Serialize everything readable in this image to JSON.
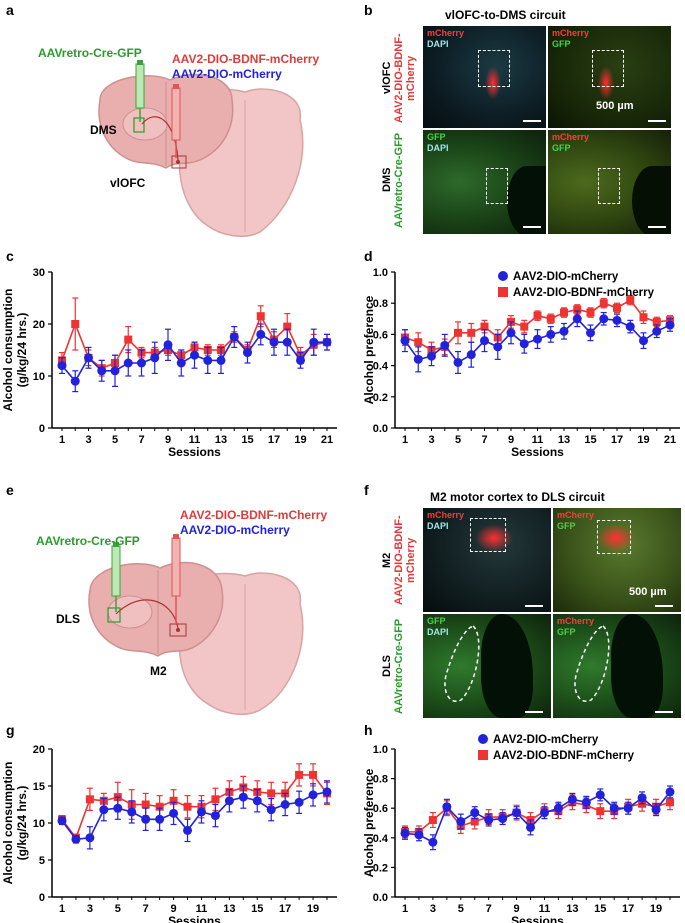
{
  "panels": {
    "a": "a",
    "b": "b",
    "c": "c",
    "d": "d",
    "e": "e",
    "f": "f",
    "g": "g",
    "h": "h"
  },
  "colors": {
    "red": "#ee3333",
    "blue": "#2222dd",
    "green": "#2a9c2a"
  },
  "schematic_top": {
    "retro": "AAVretro-Cre-GFP",
    "bdnf": "AAV2-DIO-BDNF-mCherry",
    "mcherry": "AAV2-DIO-mCherry",
    "target": "DMS",
    "source": "vlOFC"
  },
  "schematic_bottom": {
    "retro": "AAVretro-Cre-GFP",
    "bdnf": "AAV2-DIO-BDNF-mCherry",
    "mcherry": "AAV2-DIO-mCherry",
    "target": "DLS",
    "source": "M2"
  },
  "micro_top": {
    "title": "vlOFC-to-DMS circuit",
    "row1_region": "vlOFC",
    "row1_virus": "AAV2-DIO-BDNF-mCherry",
    "row2_region": "DMS",
    "row2_virus": "AAVretro-Cre-GFP",
    "ch_mcherry": "mCherry",
    "ch_dapi": "DAPI",
    "ch_gfp": "GFP",
    "scale": "500 µm"
  },
  "micro_bottom": {
    "title": "M2 motor cortex to DLS circuit",
    "row1_region": "M2",
    "row1_virus": "AAV2-DIO-BDNF-mCherry",
    "row2_region": "DLS",
    "row2_virus": "AAVretro-Cre-GFP",
    "ch_mcherry": "mCherry",
    "ch_dapi": "DAPI",
    "ch_gfp": "GFP",
    "scale": "500 µm"
  },
  "chart_data": [
    {
      "id": "c",
      "type": "line",
      "ylabel": "Alcohol consumption\n(g/kg/24 hrs.)",
      "xlabel": "Sessions",
      "ylim": [
        0,
        30
      ],
      "yticks": [
        0,
        10,
        20,
        30
      ],
      "xticks": [
        1,
        3,
        5,
        7,
        9,
        11,
        13,
        15,
        17,
        19,
        21
      ],
      "x": [
        1,
        2,
        3,
        4,
        5,
        6,
        7,
        8,
        9,
        10,
        11,
        12,
        13,
        14,
        15,
        16,
        17,
        18,
        19,
        20,
        21
      ],
      "legend": "",
      "series": [
        {
          "name": "AAV2-DIO-BDNF-mCherry",
          "color": "#ee3333",
          "marker": "square",
          "values": [
            13,
            20,
            13.5,
            11.5,
            12.5,
            17,
            14.5,
            14.5,
            15,
            14,
            15.5,
            15,
            15,
            17.5,
            15,
            21.5,
            17,
            19.5,
            14,
            16,
            16.5
          ],
          "err": [
            1.5,
            5,
            1.5,
            1.5,
            1.5,
            2.5,
            1,
            1,
            1,
            1,
            1,
            1,
            1,
            1,
            1,
            2,
            1.5,
            2.5,
            1.5,
            2,
            1.5
          ]
        },
        {
          "name": "AAV2-DIO-mCherry",
          "color": "#2222dd",
          "marker": "circle",
          "values": [
            12,
            9,
            13.5,
            11,
            11,
            12.5,
            12.5,
            13.5,
            16,
            12.5,
            14,
            13,
            13,
            17.5,
            14.5,
            18,
            16.5,
            16.5,
            13,
            16.5,
            16.5
          ],
          "err": [
            1.5,
            2,
            2,
            2,
            3,
            2.5,
            2.5,
            3,
            3,
            2.5,
            2.5,
            2.5,
            2.5,
            2,
            2,
            2,
            2.5,
            2.5,
            1.5,
            2.5,
            1.5
          ]
        }
      ]
    },
    {
      "id": "d",
      "type": "line",
      "ylabel": "Alcohol preference",
      "xlabel": "Sessions",
      "ylim": [
        0,
        1.0
      ],
      "yticks": [
        0,
        0.2,
        0.4,
        0.6,
        0.8,
        1.0
      ],
      "ytick_labels": [
        "0.0",
        "0.2",
        "0.4",
        "0.6",
        "0.8",
        "1.0"
      ],
      "xticks": [
        1,
        3,
        5,
        7,
        9,
        11,
        13,
        15,
        17,
        19,
        21
      ],
      "x": [
        1,
        2,
        3,
        4,
        5,
        6,
        7,
        8,
        9,
        10,
        11,
        12,
        13,
        14,
        15,
        16,
        17,
        18,
        19,
        20,
        21
      ],
      "legend": "top-right",
      "legend_order": [
        "AAV2-DIO-mCherry",
        "AAV2-DIO-BDNF-mCherry"
      ],
      "series": [
        {
          "name": "AAV2-DIO-BDNF-mCherry",
          "color": "#ee3333",
          "marker": "square",
          "values": [
            0.58,
            0.55,
            0.5,
            0.52,
            0.61,
            0.61,
            0.65,
            0.58,
            0.68,
            0.65,
            0.72,
            0.7,
            0.74,
            0.76,
            0.74,
            0.8,
            0.77,
            0.82,
            0.71,
            0.68,
            0.69
          ],
          "err": [
            0.05,
            0.06,
            0.05,
            0.05,
            0.07,
            0.06,
            0.04,
            0.05,
            0.04,
            0.04,
            0.03,
            0.03,
            0.03,
            0.03,
            0.03,
            0.03,
            0.03,
            0.03,
            0.04,
            0.03,
            0.03
          ]
        },
        {
          "name": "AAV2-DIO-mCherry",
          "color": "#2222dd",
          "marker": "circle",
          "values": [
            0.56,
            0.44,
            0.46,
            0.53,
            0.42,
            0.47,
            0.56,
            0.52,
            0.61,
            0.54,
            0.57,
            0.6,
            0.62,
            0.7,
            0.61,
            0.7,
            0.69,
            0.65,
            0.56,
            0.62,
            0.66
          ],
          "err": [
            0.07,
            0.08,
            0.06,
            0.07,
            0.07,
            0.08,
            0.07,
            0.08,
            0.07,
            0.06,
            0.06,
            0.05,
            0.05,
            0.05,
            0.05,
            0.04,
            0.04,
            0.04,
            0.05,
            0.04,
            0.04
          ]
        }
      ]
    },
    {
      "id": "g",
      "type": "line",
      "ylabel": "Alcohol consumption\n(g/kg/24 hrs.)",
      "xlabel": "Sessions",
      "ylim": [
        0,
        20
      ],
      "yticks": [
        0,
        5,
        10,
        15,
        20
      ],
      "xticks": [
        1,
        3,
        5,
        7,
        9,
        11,
        13,
        15,
        17,
        19
      ],
      "x": [
        1,
        2,
        3,
        4,
        5,
        6,
        7,
        8,
        9,
        10,
        11,
        12,
        13,
        14,
        15,
        16,
        17,
        18,
        19,
        20
      ],
      "legend": "",
      "series": [
        {
          "name": "AAV2-DIO-BDNF-mCherry",
          "color": "#ee3333",
          "marker": "square",
          "values": [
            10.5,
            8,
            13.2,
            13,
            13.5,
            12.5,
            12.5,
            12.2,
            13,
            12.2,
            12.2,
            13.2,
            14.2,
            14.8,
            14.2,
            14,
            14,
            16.5,
            16.5,
            14
          ],
          "err": [
            0.5,
            0.5,
            1.5,
            1,
            2,
            2,
            1.5,
            1.5,
            1.5,
            1.5,
            1.5,
            1.5,
            1.5,
            1.5,
            1.5,
            1.5,
            1.5,
            1.5,
            1.5,
            1.5
          ]
        },
        {
          "name": "AAV2-DIO-mCherry",
          "color": "#2222dd",
          "marker": "circle",
          "values": [
            10.3,
            7.8,
            8,
            11.8,
            12,
            11.5,
            10.5,
            10.5,
            11.3,
            9,
            11.5,
            11,
            13,
            13.5,
            13,
            11.8,
            12.5,
            12.8,
            13.8,
            14.2
          ],
          "err": [
            0.5,
            0.5,
            1.5,
            1.5,
            1.5,
            1.5,
            1.5,
            1.5,
            1.5,
            1.5,
            1.5,
            1.5,
            1.5,
            1.5,
            1.5,
            1.5,
            1.5,
            1.5,
            1.5,
            1.5
          ]
        }
      ]
    },
    {
      "id": "h",
      "type": "line",
      "ylabel": "Alcohol preference",
      "xlabel": "Sessions",
      "ylim": [
        0,
        1.0
      ],
      "yticks": [
        0,
        0.2,
        0.4,
        0.6,
        0.8,
        1.0
      ],
      "ytick_labels": [
        "0.0",
        "0.2",
        "0.4",
        "0.6",
        "0.8",
        "1.0"
      ],
      "xticks": [
        1,
        3,
        5,
        7,
        9,
        11,
        13,
        15,
        17,
        19
      ],
      "x": [
        1,
        2,
        3,
        4,
        5,
        6,
        7,
        8,
        9,
        10,
        11,
        12,
        13,
        14,
        15,
        16,
        17,
        18,
        19,
        20
      ],
      "legend": "top-right",
      "legend_order": [
        "AAV2-DIO-mCherry",
        "AAV2-DIO-BDNF-mCherry"
      ],
      "series": [
        {
          "name": "AAV2-DIO-BDNF-mCherry",
          "color": "#ee3333",
          "marker": "square",
          "values": [
            0.44,
            0.44,
            0.52,
            0.6,
            0.48,
            0.51,
            0.54,
            0.54,
            0.57,
            0.52,
            0.58,
            0.58,
            0.64,
            0.62,
            0.58,
            0.58,
            0.61,
            0.63,
            0.61,
            0.64
          ],
          "err": [
            0.04,
            0.04,
            0.05,
            0.05,
            0.05,
            0.05,
            0.05,
            0.05,
            0.05,
            0.05,
            0.05,
            0.05,
            0.05,
            0.05,
            0.05,
            0.05,
            0.05,
            0.05,
            0.05,
            0.05
          ]
        },
        {
          "name": "AAV2-DIO-mCherry",
          "color": "#2222dd",
          "marker": "circle",
          "values": [
            0.43,
            0.42,
            0.37,
            0.61,
            0.51,
            0.57,
            0.52,
            0.53,
            0.57,
            0.47,
            0.57,
            0.6,
            0.66,
            0.64,
            0.69,
            0.6,
            0.6,
            0.67,
            0.59,
            0.71
          ],
          "err": [
            0.04,
            0.04,
            0.05,
            0.05,
            0.05,
            0.04,
            0.04,
            0.04,
            0.04,
            0.05,
            0.04,
            0.04,
            0.04,
            0.04,
            0.04,
            0.04,
            0.04,
            0.04,
            0.04,
            0.04
          ]
        }
      ]
    }
  ]
}
